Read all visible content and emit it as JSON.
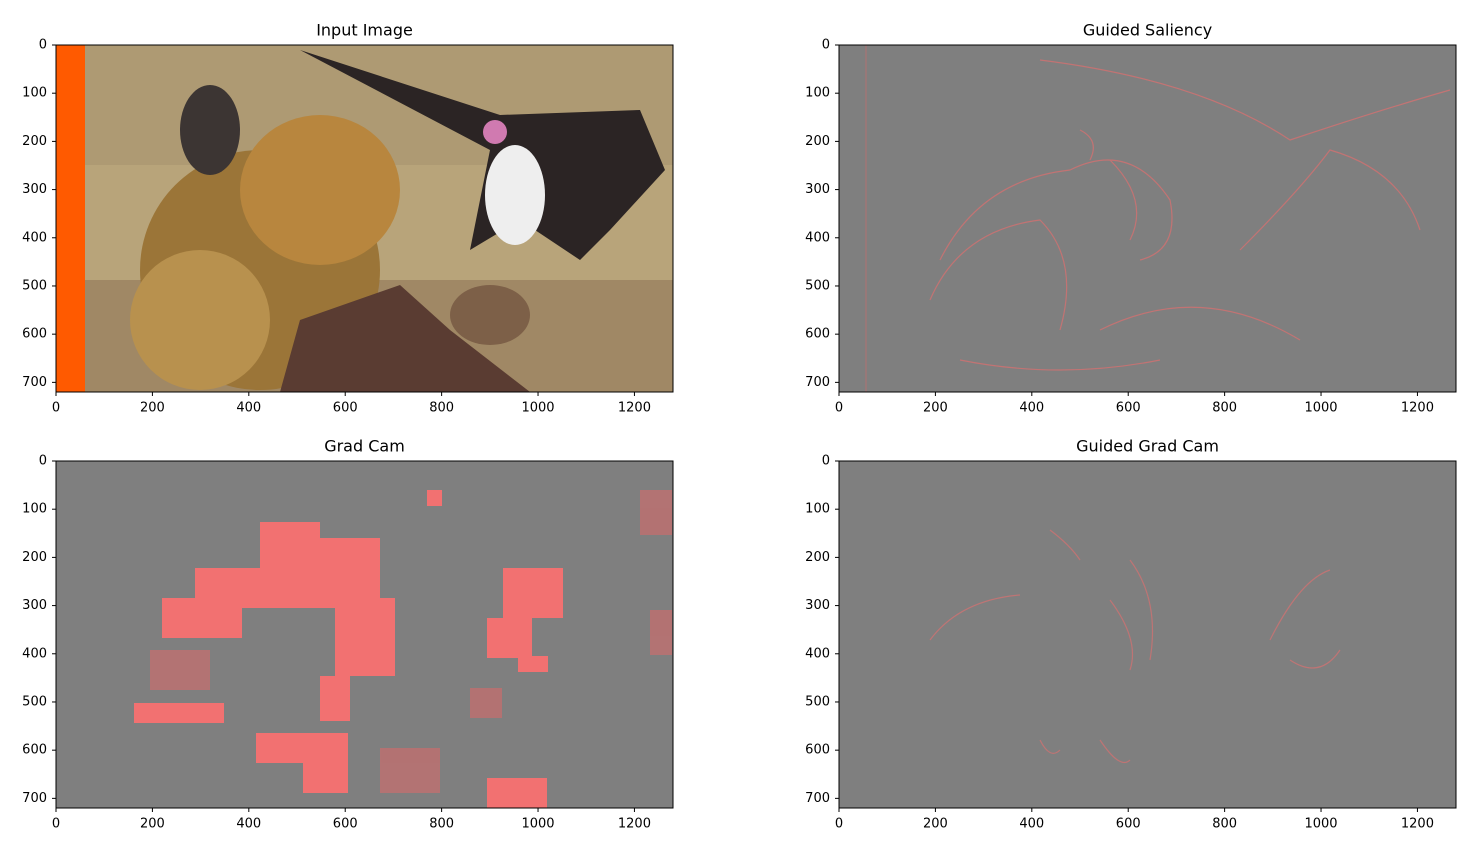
{
  "chart_data": [
    {
      "type": "image",
      "title": "Input Image",
      "xlim": [
        0,
        1280
      ],
      "ylim": [
        720,
        0
      ],
      "xticks": [
        0,
        200,
        400,
        600,
        800,
        1000,
        1200
      ],
      "yticks": [
        0,
        100,
        200,
        300,
        400,
        500,
        600,
        700
      ]
    },
    {
      "type": "image",
      "title": "Guided Saliency",
      "xlim": [
        0,
        1280
      ],
      "ylim": [
        720,
        0
      ],
      "xticks": [
        0,
        200,
        400,
        600,
        800,
        1000,
        1200
      ],
      "yticks": [
        0,
        100,
        200,
        300,
        400,
        500,
        600,
        700
      ]
    },
    {
      "type": "image",
      "title": "Grad Cam",
      "xlim": [
        0,
        1280
      ],
      "ylim": [
        720,
        0
      ],
      "xticks": [
        0,
        200,
        400,
        600,
        800,
        1000,
        1200
      ],
      "yticks": [
        0,
        100,
        200,
        300,
        400,
        500,
        600,
        700
      ]
    },
    {
      "type": "image",
      "title": "Guided Grad Cam",
      "xlim": [
        0,
        1280
      ],
      "ylim": [
        720,
        0
      ],
      "xticks": [
        0,
        200,
        400,
        600,
        800,
        1000,
        1200
      ],
      "yticks": [
        0,
        100,
        200,
        300,
        400,
        500,
        600,
        700
      ]
    }
  ]
}
